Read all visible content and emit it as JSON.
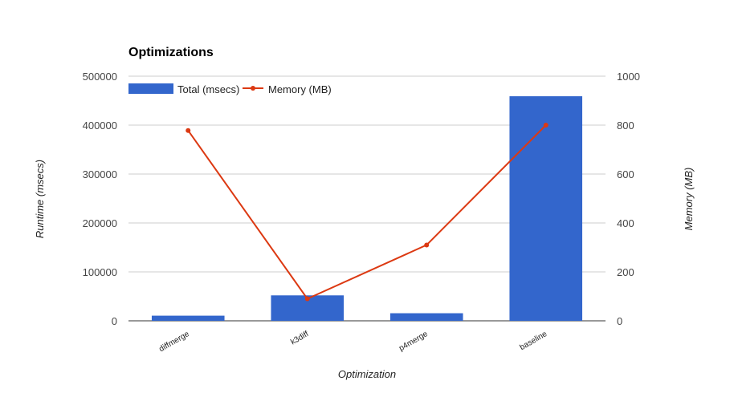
{
  "chart_data": {
    "type": "bar",
    "title": "Optimizations",
    "xlabel": "Optimization",
    "ylabel": "Runtime (msecs)",
    "y2label": "Memory (MB)",
    "categories": [
      "diffmerge",
      "k3diff",
      "p4merge",
      "baseline"
    ],
    "series": [
      {
        "name": "Total (msecs)",
        "type": "bar",
        "axis": "left",
        "color": "#3366cc",
        "values": [
          10500,
          52000,
          15500,
          459000
        ]
      },
      {
        "name": "Memory (MB)",
        "type": "line",
        "axis": "right",
        "color": "#dc3912",
        "values": [
          778,
          90,
          310,
          800
        ]
      }
    ],
    "ylim": [
      0,
      500000
    ],
    "y2lim": [
      0,
      1000
    ],
    "y_ticks": [
      "0",
      "100000",
      "200000",
      "300000",
      "400000",
      "500000"
    ],
    "y2_ticks": [
      "0",
      "200",
      "400",
      "600",
      "800",
      "1000"
    ],
    "grid": true,
    "legend_position": "top"
  }
}
